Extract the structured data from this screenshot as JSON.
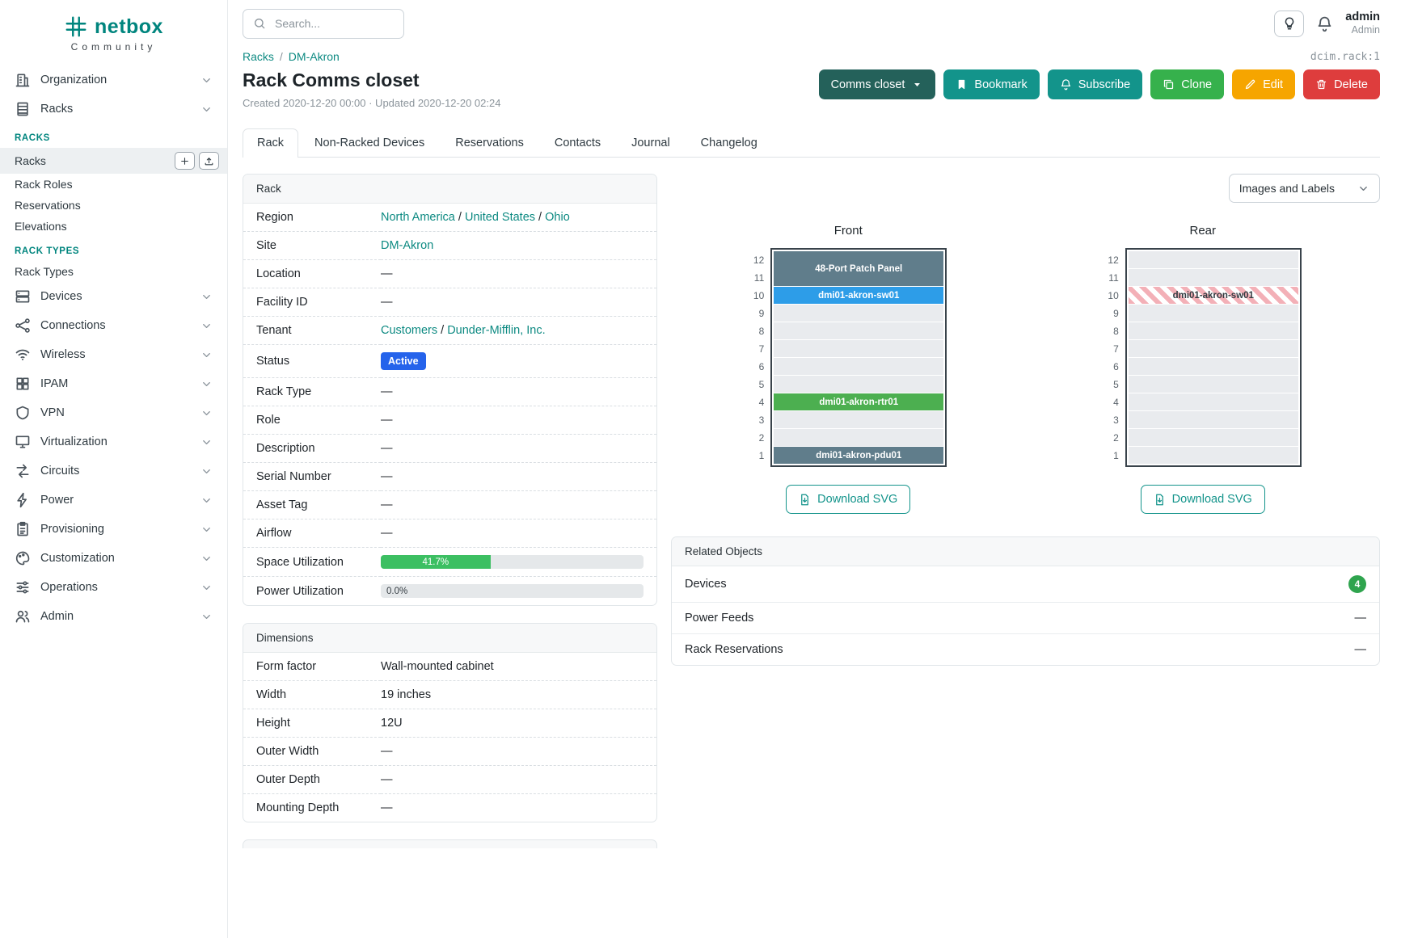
{
  "colors": {
    "brand": "#00857e",
    "link": "#0d8a82",
    "btn-teal": "#13948b",
    "btn-dark-teal": "#24615a",
    "btn-green": "#36b14c",
    "btn-orange": "#f6a500",
    "btn-red": "#de3d3d",
    "badge-blue": "#2563eb",
    "progress-green": "#3cbf62",
    "count-green": "#2fa44e"
  },
  "sidebar": {
    "logo_text": "netbox",
    "tagline": "Community",
    "organization": {
      "label": "Organization",
      "icon": "building"
    },
    "racks_group": {
      "label": "Racks",
      "icon": "rack"
    },
    "sections": [
      {
        "header": "RACKS",
        "items": [
          {
            "label": "Racks"
          },
          {
            "label": "Rack Roles"
          },
          {
            "label": "Reservations"
          },
          {
            "label": "Elevations"
          }
        ]
      },
      {
        "header": "RACK TYPES",
        "items": [
          {
            "label": "Rack Types"
          }
        ]
      }
    ],
    "groups": [
      {
        "label": "Devices",
        "icon": "devices"
      },
      {
        "label": "Connections",
        "icon": "connections"
      },
      {
        "label": "Wireless",
        "icon": "wifi"
      },
      {
        "label": "IPAM",
        "icon": "ipam"
      },
      {
        "label": "VPN",
        "icon": "vpn"
      },
      {
        "label": "Virtualization",
        "icon": "virtualization"
      },
      {
        "label": "Circuits",
        "icon": "circuits"
      },
      {
        "label": "Power",
        "icon": "power"
      },
      {
        "label": "Provisioning",
        "icon": "provisioning"
      },
      {
        "label": "Customization",
        "icon": "customization"
      },
      {
        "label": "Operations",
        "icon": "operations"
      },
      {
        "label": "Admin",
        "icon": "admin"
      }
    ]
  },
  "topbar": {
    "search_placeholder": "Search...",
    "user_name": "admin",
    "user_role": "Admin"
  },
  "header": {
    "breadcrumb": [
      "Racks",
      "DM-Akron"
    ],
    "object_id": "dcim.rack:1",
    "title": "Rack Comms closet",
    "meta": "Created 2020-12-20 00:00 · Updated 2020-12-20 02:24",
    "actions": {
      "rename": "Comms closet",
      "bookmark": "Bookmark",
      "subscribe": "Subscribe",
      "clone": "Clone",
      "edit": "Edit",
      "delete": "Delete"
    },
    "tabs": [
      {
        "label": "Rack",
        "active": true
      },
      {
        "label": "Non-Racked Devices"
      },
      {
        "label": "Reservations"
      },
      {
        "label": "Contacts"
      },
      {
        "label": "Journal"
      },
      {
        "label": "Changelog"
      }
    ]
  },
  "rack_card": {
    "title": "Rack",
    "rows": {
      "region": {
        "label": "Region",
        "links": [
          "North America",
          "United States",
          "Ohio"
        ]
      },
      "site": {
        "label": "Site",
        "link": "DM-Akron"
      },
      "location": {
        "label": "Location",
        "value": "—"
      },
      "facility_id": {
        "label": "Facility ID",
        "value": "—"
      },
      "tenant": {
        "label": "Tenant",
        "links": [
          "Customers",
          "Dunder-Mifflin, Inc."
        ]
      },
      "status": {
        "label": "Status",
        "badge": "Active"
      },
      "rack_type": {
        "label": "Rack Type",
        "value": "—"
      },
      "role": {
        "label": "Role",
        "value": "—"
      },
      "description": {
        "label": "Description",
        "value": "—"
      },
      "serial": {
        "label": "Serial Number",
        "value": "—"
      },
      "asset_tag": {
        "label": "Asset Tag",
        "value": "—"
      },
      "airflow": {
        "label": "Airflow",
        "value": "—"
      },
      "space_util": {
        "label": "Space Utilization",
        "percent": "41.7%",
        "fraction": 41.7
      },
      "power_util": {
        "label": "Power Utilization",
        "percent": "0.0%",
        "fraction": 0
      }
    }
  },
  "dimensions_card": {
    "title": "Dimensions",
    "rows": [
      {
        "label": "Form factor",
        "value": "Wall-mounted cabinet"
      },
      {
        "label": "Width",
        "value": "19 inches"
      },
      {
        "label": "Height",
        "value": "12U"
      },
      {
        "label": "Outer Width",
        "value": "—"
      },
      {
        "label": "Outer Depth",
        "value": "—"
      },
      {
        "label": "Mounting Depth",
        "value": "—"
      }
    ]
  },
  "elevations": {
    "toggle_label": "Images and Labels",
    "front": {
      "title": "Front",
      "height_u": 12,
      "download_label": "Download SVG",
      "devices": [
        {
          "u": 12,
          "span": 2,
          "label": "48-Port Patch Panel",
          "color": "#607d8b",
          "text_color": "#ffffff"
        },
        {
          "u": 10,
          "span": 1,
          "label": "dmi01-akron-sw01",
          "color": "#2d9de8",
          "text_color": "#ffffff"
        },
        {
          "u": 4,
          "span": 1,
          "label": "dmi01-akron-rtr01",
          "color": "#4caf50",
          "text_color": "#ffffff"
        },
        {
          "u": 1,
          "span": 1,
          "label": "dmi01-akron-pdu01",
          "color": "#607d8b",
          "text_color": "#ffffff"
        }
      ]
    },
    "rear": {
      "title": "Rear",
      "height_u": 12,
      "download_label": "Download SVG",
      "devices": [
        {
          "u": 10,
          "span": 1,
          "label": "dmi01-akron-sw01",
          "striped": true,
          "text_color": "#343c42"
        }
      ]
    }
  },
  "related_card": {
    "title": "Related Objects",
    "rows": [
      {
        "label": "Devices",
        "count": "4"
      },
      {
        "label": "Power Feeds",
        "value": "—"
      },
      {
        "label": "Rack Reservations",
        "value": "—"
      }
    ]
  }
}
